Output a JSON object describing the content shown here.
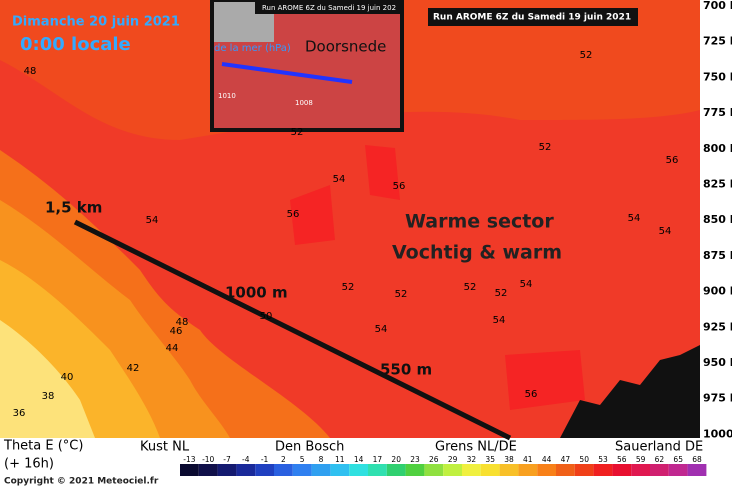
{
  "header": {
    "date": "Dimanche 20 juin 2021",
    "time": "0:00 locale",
    "run": "Run AROME 6Z du Samedi 19 juin 2021"
  },
  "inset": {
    "run": "Run AROME 6Z du Samedi 19 juin 202",
    "label": "de la mer (hPa)",
    "title": "Doorsnede",
    "isobars": [
      "1010",
      "1008"
    ]
  },
  "pressure_levels": [
    "700 hPa",
    "725 hPa",
    "750 hPa",
    "775 hPa",
    "800 hPa",
    "825 hPa",
    "850 hPa",
    "875 hPa",
    "900 hPa",
    "925 hPa",
    "950 hPa",
    "975 hPa",
    "1000 hPa"
  ],
  "contour_labels": [
    48,
    52,
    52,
    52,
    56,
    54,
    56,
    56,
    54,
    54,
    54,
    52,
    52,
    52,
    52,
    54,
    50,
    48,
    46,
    54,
    54,
    44,
    42,
    40,
    38,
    36,
    56
  ],
  "annotations": {
    "height_top": "1,5 km",
    "height_mid": "1000 m",
    "height_low": "550 m",
    "sector": "Warme sector",
    "sector_note": "Vochtig & warm"
  },
  "footer": {
    "variable": "Theta E (°C)",
    "lead": "(+ 16h)",
    "locations": [
      "Kust NL",
      "Den Bosch",
      "Grens NL/DE",
      "Sauerland DE"
    ],
    "scale": [
      -13,
      -10,
      -7,
      -4,
      -1,
      2,
      5,
      8,
      11,
      14,
      17,
      20,
      23,
      26,
      29,
      32,
      35,
      38,
      41,
      44,
      47,
      50,
      53,
      56,
      59,
      62,
      65,
      68
    ],
    "copyright": "Copyright © 2021 Meteociel.fr"
  }
}
